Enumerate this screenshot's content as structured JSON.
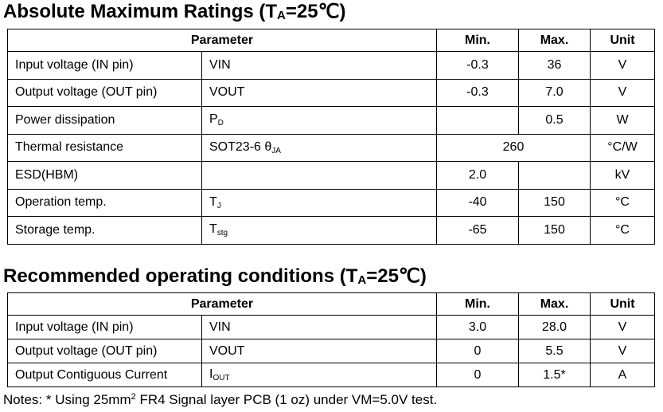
{
  "tables": [
    {
      "title": {
        "text": "Absolute Maximum Ratings (T",
        "sub": "A",
        "after": "=25℃)"
      },
      "header": {
        "parameter": "Parameter",
        "min": "Min.",
        "max": "Max.",
        "unit": "Unit"
      },
      "rows": [
        {
          "parameter": "Input voltage (IN pin)",
          "symbol": {
            "text": "VIN"
          },
          "min": "-0.3",
          "max": "36",
          "unit": "V"
        },
        {
          "parameter": "Output voltage (OUT pin)",
          "symbol": {
            "text": "VOUT"
          },
          "min": "-0.3",
          "max": "7.0",
          "unit": "V"
        },
        {
          "parameter": "Power dissipation",
          "symbol": {
            "text": "P",
            "sub": "D"
          },
          "max": "0.5",
          "unit": "W"
        },
        {
          "parameter": "Thermal resistance",
          "symbol": {
            "text": "SOT23-6 θ",
            "sub": "JA"
          },
          "min_max": "260",
          "unit": "°C/W"
        },
        {
          "parameter": "ESD(HBM)",
          "min": "2.0",
          "unit": "kV"
        },
        {
          "parameter": "Operation temp.",
          "symbol": {
            "text": "T",
            "sub": "J"
          },
          "min": "-40",
          "max": "150",
          "unit": "°C"
        },
        {
          "parameter": "Storage temp.",
          "symbol": {
            "text": "T",
            "sub": "stg"
          },
          "min": "-65",
          "max": "150",
          "unit": "°C"
        }
      ]
    },
    {
      "title": {
        "text": "Recommended operating conditions (T",
        "sub": "A",
        "after": "=25℃)"
      },
      "header": {
        "parameter": "Parameter",
        "min": "Min.",
        "max": "Max.",
        "unit": "Unit"
      },
      "rows": [
        {
          "parameter": "Input voltage (IN pin)",
          "symbol": {
            "text": "VIN"
          },
          "min": "3.0",
          "max": "28.0",
          "unit": "V"
        },
        {
          "parameter": "Output voltage (OUT pin)",
          "symbol": {
            "text": "VOUT"
          },
          "min": "0",
          "max": "5.5",
          "unit": "V"
        },
        {
          "parameter": "Output Contiguous Current",
          "symbol": {
            "text": "I",
            "sub": "OUT"
          },
          "min": "0",
          "max": "1.5*",
          "unit": "A"
        }
      ]
    }
  ],
  "notes": {
    "text": "Notes: * Using 25mm",
    "sup": "2",
    "after": " FR4 Signal layer PCB (1 oz) under VM=5.0V test."
  }
}
